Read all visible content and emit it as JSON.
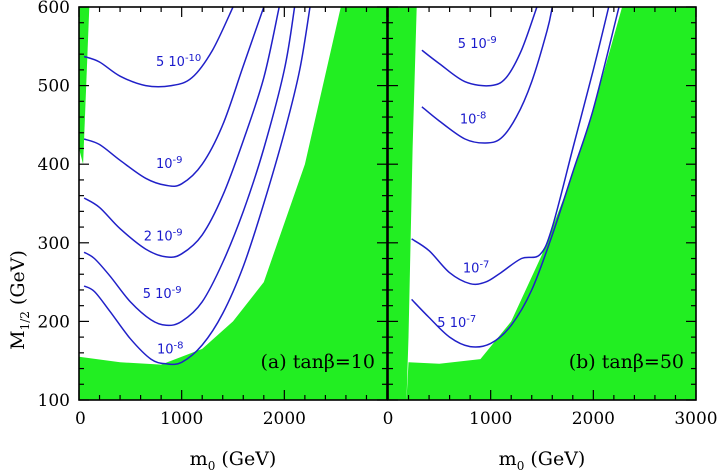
{
  "colors": {
    "excluded": "#22ee22",
    "contour": "#2020c8",
    "label": "#1a1acc"
  },
  "chart_data": {
    "type": "contour",
    "ylabel": "M",
    "ylabel_sub": "1/2",
    "ylabel_unit": "(GeV)",
    "ylim": [
      100,
      600
    ],
    "yticks": [
      100,
      200,
      300,
      400,
      500,
      600
    ],
    "grid": false,
    "panels": [
      {
        "id": "a",
        "panel_label": "(a) tanβ=10",
        "xlabel": "m",
        "xlabel_sub": "0",
        "xlabel_unit": "(GeV)",
        "xlim": [
          0,
          3000
        ],
        "xticks": [
          0,
          1000,
          2000
        ],
        "excluded_regions": [
          {
            "points": [
              [
                0,
                600
              ],
              [
                0,
                420
              ],
              [
                40,
                400
              ],
              [
                100,
                600
              ]
            ]
          },
          {
            "points": [
              [
                0,
                100
              ],
              [
                3000,
                100
              ],
              [
                3000,
                600
              ],
              [
                2550,
                600
              ],
              [
                2200,
                400
              ],
              [
                1800,
                250
              ],
              [
                1500,
                200
              ],
              [
                1200,
                165
              ],
              [
                800,
                145
              ],
              [
                400,
                148
              ],
              [
                0,
                155
              ]
            ]
          }
        ],
        "contours": [
          {
            "label": "5 10",
            "label_exp": "-10",
            "label_at": [
              750,
              525
            ],
            "points": [
              [
                50,
                537
              ],
              [
                200,
                530
              ],
              [
                400,
                512
              ],
              [
                650,
                500
              ],
              [
                900,
                500
              ],
              [
                1100,
                510
              ],
              [
                1300,
                545
              ],
              [
                1500,
                600
              ]
            ]
          },
          {
            "label": "10",
            "label_exp": "-9",
            "label_at": [
              750,
              395
            ],
            "points": [
              [
                50,
                432
              ],
              [
                200,
                425
              ],
              [
                400,
                405
              ],
              [
                650,
                382
              ],
              [
                850,
                373
              ],
              [
                1000,
                375
              ],
              [
                1200,
                400
              ],
              [
                1400,
                450
              ],
              [
                1600,
                525
              ],
              [
                1800,
                600
              ]
            ]
          },
          {
            "label": "2 10",
            "label_exp": "-9",
            "label_at": [
              630,
              303
            ],
            "points": [
              [
                50,
                357
              ],
              [
                200,
                345
              ],
              [
                400,
                318
              ],
              [
                650,
                292
              ],
              [
                850,
                282
              ],
              [
                1000,
                286
              ],
              [
                1200,
                310
              ],
              [
                1400,
                360
              ],
              [
                1600,
                430
              ],
              [
                1800,
                510
              ],
              [
                1950,
                600
              ]
            ]
          },
          {
            "label": "5 10",
            "label_exp": "-9",
            "label_at": [
              620,
              230
            ],
            "points": [
              [
                50,
                288
              ],
              [
                150,
                280
              ],
              [
                300,
                258
              ],
              [
                500,
                225
              ],
              [
                700,
                202
              ],
              [
                850,
                195
              ],
              [
                1000,
                200
              ],
              [
                1200,
                225
              ],
              [
                1400,
                275
              ],
              [
                1600,
                340
              ],
              [
                1800,
                420
              ],
              [
                2000,
                520
              ],
              [
                2100,
                600
              ]
            ]
          },
          {
            "label": "10",
            "label_exp": "-8",
            "label_at": [
              760,
              159
            ],
            "points": [
              [
                50,
                245
              ],
              [
                150,
                238
              ],
              [
                300,
                213
              ],
              [
                500,
                178
              ],
              [
                700,
                152
              ],
              [
                850,
                146
              ],
              [
                1000,
                148
              ],
              [
                1200,
                170
              ],
              [
                1400,
                210
              ],
              [
                1600,
                270
              ],
              [
                1800,
                350
              ],
              [
                2000,
                440
              ],
              [
                2150,
                520
              ],
              [
                2250,
                600
              ]
            ]
          }
        ]
      },
      {
        "id": "b",
        "panel_label": "(b) tanβ=50",
        "xlabel": "m",
        "xlabel_sub": "0",
        "xlabel_unit": "(GeV)",
        "xlim": [
          0,
          3000
        ],
        "xticks": [
          0,
          1000,
          2000,
          3000
        ],
        "excluded_regions": [
          {
            "points": [
              [
                0,
                100
              ],
              [
                0,
                600
              ],
              [
                280,
                600
              ],
              [
                240,
                420
              ],
              [
                200,
                180
              ],
              [
                180,
                100
              ]
            ]
          },
          {
            "points": [
              [
                180,
                100
              ],
              [
                3000,
                100
              ],
              [
                3000,
                600
              ],
              [
                2280,
                600
              ],
              [
                2000,
                470
              ],
              [
                1750,
                370
              ],
              [
                1500,
                285
              ],
              [
                1200,
                200
              ],
              [
                900,
                152
              ],
              [
                500,
                146
              ],
              [
                200,
                148
              ]
            ]
          }
        ],
        "contours": [
          {
            "label": "5 10",
            "label_exp": "-9",
            "label_at": [
              680,
              548
            ],
            "points": [
              [
                330,
                545
              ],
              [
                500,
                528
              ],
              [
                750,
                505
              ],
              [
                1000,
                500
              ],
              [
                1150,
                510
              ],
              [
                1300,
                545
              ],
              [
                1450,
                600
              ]
            ]
          },
          {
            "label": "10",
            "label_exp": "-8",
            "label_at": [
              700,
              452
            ],
            "points": [
              [
                330,
                473
              ],
              [
                500,
                455
              ],
              [
                750,
                432
              ],
              [
                950,
                427
              ],
              [
                1100,
                433
              ],
              [
                1250,
                460
              ],
              [
                1400,
                505
              ],
              [
                1550,
                570
              ],
              [
                1600,
                600
              ]
            ]
          },
          {
            "label": "10",
            "label_exp": "-7",
            "label_at": [
              730,
              262
            ],
            "points": [
              [
                230,
                305
              ],
              [
                400,
                290
              ],
              [
                600,
                262
              ],
              [
                800,
                248
              ],
              [
                950,
                250
              ],
              [
                1100,
                262
              ],
              [
                1300,
                280
              ],
              [
                1480,
                285
              ],
              [
                1600,
                320
              ],
              [
                1800,
                420
              ],
              [
                2000,
                520
              ],
              [
                2150,
                600
              ]
            ]
          },
          {
            "label": "5 10",
            "label_exp": "-7",
            "label_at": [
              480,
              193
            ],
            "points": [
              [
                230,
                228
              ],
              [
                400,
                205
              ],
              [
                600,
                180
              ],
              [
                800,
                168
              ],
              [
                1000,
                172
              ],
              [
                1200,
                195
              ],
              [
                1400,
                240
              ],
              [
                1600,
                310
              ],
              [
                1800,
                390
              ],
              [
                2000,
                470
              ],
              [
                2250,
                600
              ]
            ]
          }
        ]
      }
    ]
  }
}
